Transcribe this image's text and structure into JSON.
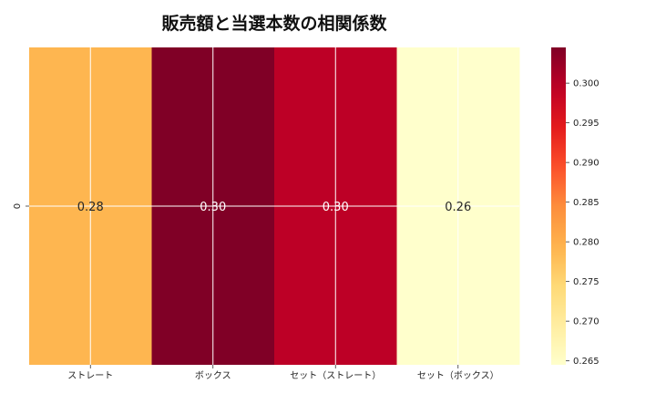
{
  "chart_data": {
    "type": "heatmap",
    "title": "販売額と当選本数の相関係数",
    "row_labels": [
      "0"
    ],
    "categories": [
      "ストレート",
      "ボックス",
      "セット（ストレート）",
      "セット（ボックス）"
    ],
    "values": [
      [
        0.279,
        0.3045,
        0.2995,
        0.2645
      ]
    ],
    "cell_labels": [
      "0.28",
      "0.30",
      "0.30",
      "0.26"
    ],
    "color_range": [
      0.2645,
      0.3045
    ],
    "colormap": "YlOrRd",
    "colorbar_ticks": [
      "0.265",
      "0.270",
      "0.275",
      "0.280",
      "0.285",
      "0.290",
      "0.295",
      "0.300"
    ],
    "grid": true
  }
}
